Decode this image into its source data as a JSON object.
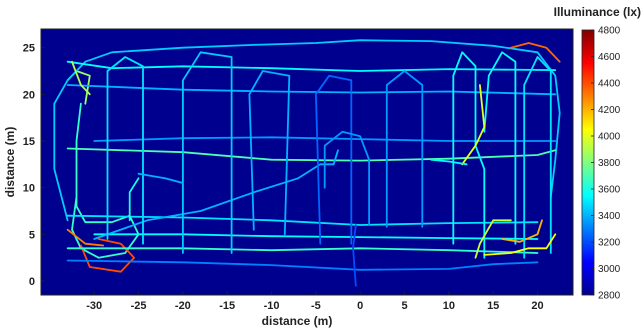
{
  "chart_data": {
    "type": "heatmap",
    "xlabel": "distance (m)",
    "ylabel": "distance (m)",
    "xlim": [
      -36,
      24
    ],
    "ylim": [
      -1.5,
      27
    ],
    "x_ticks": [
      -30,
      -25,
      -20,
      -15,
      -10,
      -5,
      0,
      5,
      10,
      15,
      20
    ],
    "y_ticks": [
      0,
      5,
      10,
      15,
      20,
      25
    ],
    "grid": false,
    "background_color": "#00008f",
    "colorbar": {
      "title": "Illuminance (lx)",
      "min": 2800,
      "max": 4800,
      "ticks": [
        2800,
        3000,
        3200,
        3400,
        3600,
        3800,
        4000,
        4200,
        4400,
        4600,
        4800
      ],
      "colormap": "jet"
    },
    "paths": [
      {
        "points": [
          [
            -31.5,
            19
          ],
          [
            -32,
            15
          ],
          [
            -32,
            8
          ],
          [
            -31,
            6.3
          ],
          [
            -28,
            6.3
          ],
          [
            -26,
            7
          ],
          [
            -25,
            5
          ],
          [
            -26.5,
            3
          ],
          [
            -29.5,
            2.5
          ],
          [
            -31.5,
            3.5
          ],
          [
            -32.5,
            5.5
          ],
          [
            -32,
            9
          ]
        ],
        "lux": 3650
      },
      {
        "points": [
          [
            -31.5,
            3.8
          ],
          [
            -30.5,
            1.5
          ],
          [
            -27,
            1
          ],
          [
            -25.5,
            2.5
          ],
          [
            -27,
            4
          ],
          [
            -29.5,
            4.5
          ]
        ],
        "lux": 4400
      },
      {
        "points": [
          [
            -33,
            5.5
          ],
          [
            -31,
            4
          ],
          [
            -29,
            3.8
          ]
        ],
        "lux": 4300
      },
      {
        "points": [
          [
            -33,
            21.5
          ],
          [
            -32,
            22.5
          ],
          [
            -30.5,
            22
          ],
          [
            -31,
            19
          ]
        ],
        "lux": 3850
      },
      {
        "points": [
          [
            -33,
            6.5
          ],
          [
            -34.5,
            12
          ],
          [
            -34.5,
            19
          ],
          [
            -33,
            21.5
          ],
          [
            -31,
            23.5
          ],
          [
            -28,
            24.5
          ],
          [
            -20,
            25
          ],
          [
            -12,
            25.3
          ],
          [
            -5,
            25.5
          ],
          [
            0,
            25.8
          ],
          [
            8,
            25.7
          ],
          [
            15,
            25.2
          ],
          [
            20,
            24.5
          ],
          [
            22,
            22
          ],
          [
            22.5,
            18
          ],
          [
            22,
            13
          ],
          [
            21.5,
            9
          ]
        ],
        "lux": 3450
      },
      {
        "points": [
          [
            -33,
            23.5
          ],
          [
            -28,
            22.8
          ],
          [
            -20,
            23
          ],
          [
            -10,
            22.8
          ],
          [
            0,
            22.5
          ],
          [
            10,
            22.7
          ],
          [
            22,
            22.6
          ]
        ],
        "lux": 3550
      },
      {
        "points": [
          [
            -33,
            21
          ],
          [
            -20,
            20.5
          ],
          [
            -10,
            20.3
          ],
          [
            0,
            20.2
          ],
          [
            10,
            20.3
          ],
          [
            22,
            20
          ]
        ],
        "lux": 3400
      },
      {
        "points": [
          [
            -30,
            15
          ],
          [
            -20,
            15.3
          ],
          [
            -10,
            15.4
          ],
          [
            0,
            15.2
          ],
          [
            10,
            15
          ],
          [
            22,
            15
          ]
        ],
        "lux": 3350
      },
      {
        "points": [
          [
            -33,
            14.2
          ],
          [
            -20,
            13.8
          ],
          [
            -10,
            13
          ],
          [
            0,
            12.9
          ],
          [
            10,
            13.1
          ],
          [
            20,
            13.5
          ],
          [
            22,
            14
          ]
        ],
        "lux": 3700
      },
      {
        "points": [
          [
            -33,
            7
          ],
          [
            -20,
            6.8
          ],
          [
            -10,
            6.5
          ],
          [
            0,
            6
          ],
          [
            10,
            6.2
          ],
          [
            20,
            6.3
          ]
        ],
        "lux": 3500
      },
      {
        "points": [
          [
            -33,
            3.5
          ],
          [
            -20,
            3.5
          ],
          [
            -10,
            3.3
          ],
          [
            0,
            3.5
          ],
          [
            10,
            3.3
          ],
          [
            20,
            3
          ]
        ],
        "lux": 3650
      },
      {
        "points": [
          [
            -30,
            5
          ],
          [
            -20,
            5
          ],
          [
            -10,
            4.8
          ],
          [
            0,
            4.7
          ],
          [
            10,
            4.6
          ],
          [
            20,
            4.5
          ]
        ],
        "lux": 3550
      },
      {
        "points": [
          [
            -33,
            2.2
          ],
          [
            -20,
            2
          ],
          [
            -10,
            1.7
          ],
          [
            0,
            1.2
          ],
          [
            10,
            1.3
          ],
          [
            15,
            1.8
          ],
          [
            20,
            2
          ]
        ],
        "lux": 3300
      },
      {
        "points": [
          [
            -30,
            4.5
          ],
          [
            -24,
            6.5
          ],
          [
            -18,
            7.5
          ],
          [
            -12,
            9.5
          ],
          [
            -7,
            11
          ],
          [
            -4.5,
            12.5
          ],
          [
            -3,
            12.5
          ],
          [
            -2.5,
            14
          ]
        ],
        "lux": 3400
      },
      {
        "points": [
          [
            -28.5,
            4.5
          ],
          [
            -28.5,
            22.5
          ],
          [
            -26.5,
            24
          ],
          [
            -24.5,
            23
          ],
          [
            -24.5,
            4
          ]
        ],
        "lux": 3500
      },
      {
        "points": [
          [
            -20,
            3
          ],
          [
            -20,
            21.5
          ],
          [
            -18,
            24.5
          ],
          [
            -14.5,
            24
          ],
          [
            -14.5,
            3
          ]
        ],
        "lux": 3450
      },
      {
        "points": [
          [
            -12,
            5.5
          ],
          [
            -12.5,
            20
          ],
          [
            -11,
            22.5
          ],
          [
            -8,
            22
          ],
          [
            -8.5,
            5
          ]
        ],
        "lux": 3400
      },
      {
        "points": [
          [
            -4.5,
            4
          ],
          [
            -5,
            20
          ],
          [
            -3.5,
            22
          ],
          [
            -1,
            21.5
          ],
          [
            -1,
            4
          ]
        ],
        "lux": 3250
      },
      {
        "points": [
          [
            -4,
            10
          ],
          [
            -4,
            14.5
          ],
          [
            -2,
            16
          ],
          [
            0,
            15.5
          ],
          [
            1,
            13
          ],
          [
            1,
            6
          ]
        ],
        "lux": 3350
      },
      {
        "points": [
          [
            -0.5,
            -0.5
          ],
          [
            -0.8,
            3.5
          ],
          [
            -0.5,
            6
          ]
        ],
        "lux": 3200
      },
      {
        "points": [
          [
            3,
            5.8
          ],
          [
            3,
            21
          ],
          [
            5,
            22.5
          ],
          [
            7,
            21
          ],
          [
            7,
            5.8
          ]
        ],
        "lux": 3350
      },
      {
        "points": [
          [
            10.5,
            4
          ],
          [
            10.5,
            22
          ],
          [
            11.5,
            24.5
          ],
          [
            13,
            23
          ],
          [
            13,
            14.5
          ],
          [
            14,
            12
          ],
          [
            14,
            2.5
          ]
        ],
        "lux": 3550
      },
      {
        "points": [
          [
            13,
            2.5
          ],
          [
            13.5,
            4
          ],
          [
            15,
            6.5
          ],
          [
            17,
            6.5
          ]
        ],
        "lux": 3950
      },
      {
        "points": [
          [
            14,
            16
          ],
          [
            14.5,
            22
          ],
          [
            16,
            24.5
          ],
          [
            17.5,
            23.5
          ],
          [
            17.5,
            4
          ]
        ],
        "lux": 3550
      },
      {
        "points": [
          [
            11.5,
            12.5
          ],
          [
            13,
            14.5
          ],
          [
            14,
            16.5
          ],
          [
            13.5,
            21
          ]
        ],
        "lux": 4000
      },
      {
        "points": [
          [
            16,
            4.5
          ],
          [
            18,
            4.2
          ],
          [
            20,
            5
          ],
          [
            20.5,
            6.5
          ]
        ],
        "lux": 4200
      },
      {
        "points": [
          [
            18.5,
            2.5
          ],
          [
            18.5,
            21
          ],
          [
            20,
            24
          ],
          [
            21.5,
            22.5
          ],
          [
            21.5,
            3
          ]
        ],
        "lux": 3500
      },
      {
        "points": [
          [
            14,
            2.8
          ],
          [
            17,
            3
          ],
          [
            19,
            3.5
          ],
          [
            21,
            3.5
          ],
          [
            22,
            5
          ]
        ],
        "lux": 4050
      },
      {
        "points": [
          [
            17,
            25
          ],
          [
            19,
            25.5
          ],
          [
            21,
            25
          ],
          [
            22.5,
            23.5
          ]
        ],
        "lux": 4350
      },
      {
        "points": [
          [
            -32.5,
            23.5
          ],
          [
            -31.5,
            21
          ],
          [
            -30.5,
            20
          ]
        ],
        "lux": 3900
      },
      {
        "points": [
          [
            -25,
            11.5
          ],
          [
            -22,
            11
          ],
          [
            -20,
            10.5
          ]
        ],
        "lux": 3400
      },
      {
        "points": [
          [
            8,
            13
          ],
          [
            10,
            12.8
          ],
          [
            12,
            12.5
          ]
        ],
        "lux": 3550
      },
      {
        "points": [
          [
            -26,
            6.5
          ],
          [
            -26,
            9.5
          ],
          [
            -25,
            11
          ]
        ],
        "lux": 3600
      }
    ]
  }
}
